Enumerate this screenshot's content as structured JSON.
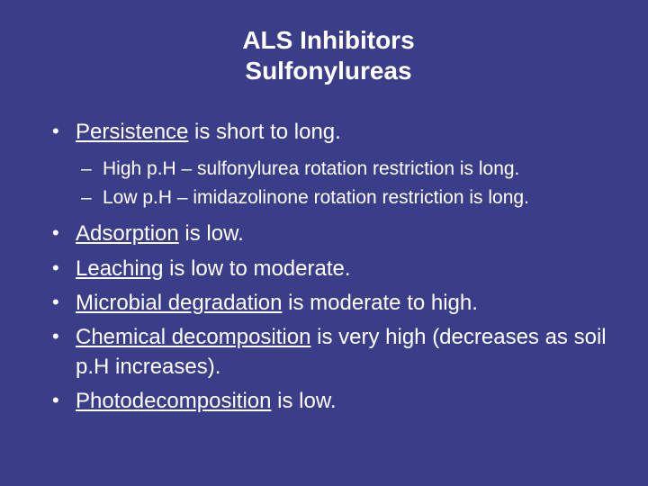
{
  "background_color": "#3a3d88",
  "text_color": "#ffffff",
  "title_fontsize": 28,
  "body_fontsize": 24,
  "sub_fontsize": 21,
  "title_line1": "ALS Inhibitors",
  "title_line2": "Sulfonylureas",
  "b1": {
    "term": "Persistence",
    "rest": " is short to long."
  },
  "b1a": "High p.H – sulfonylurea rotation restriction is long.",
  "b1b": "Low p.H – imidazolinone rotation restriction is long.",
  "b2": {
    "term": "Adsorption",
    "rest": " is low."
  },
  "b3": {
    "term": "Leaching",
    "rest": " is low to moderate."
  },
  "b4": {
    "term": "Microbial degradation",
    "rest": " is moderate to high."
  },
  "b5": {
    "term": "Chemical decomposition",
    "rest": " is very high (decreases as soil p.H increases)."
  },
  "b6": {
    "term": "Photodecomposition",
    "rest": "  is low."
  }
}
